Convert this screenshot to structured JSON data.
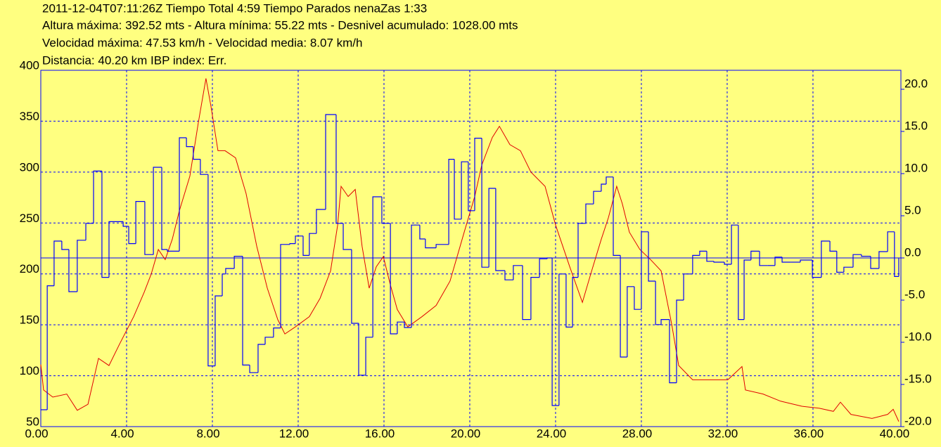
{
  "chart_data": {
    "type": "line",
    "title_lines": [
      "2011-12-04T07:11:26Z Tiempo Total  4:59  Tiempo Parados nenaZas 1:33",
      "Altura máxima: 392.52 mts - Altura mínima: 55.22 mts - Desnivel acumulado: 1028.00 mts",
      "Velocidad máxima: 47.53 km/h - Velocidad media: 8.07 km/h",
      "Distancia: 40.20 km   IBP index: Err."
    ],
    "xlim": [
      0,
      40.1
    ],
    "xticks": [
      {
        "value": 0,
        "label": "0.00"
      },
      {
        "value": 4,
        "label": "4.00"
      },
      {
        "value": 8,
        "label": "8.00"
      },
      {
        "value": 12,
        "label": "12.00"
      },
      {
        "value": 16,
        "label": "16.00"
      },
      {
        "value": 20,
        "label": "20.00"
      },
      {
        "value": 24,
        "label": "24.00"
      },
      {
        "value": 28,
        "label": "28.00"
      },
      {
        "value": 32,
        "label": "32.00"
      },
      {
        "value": 36,
        "label": "36.00"
      },
      {
        "value": 40,
        "label": "40.00"
      }
    ],
    "ylim": [
      50,
      400
    ],
    "yticks": [
      50,
      100,
      150,
      200,
      250,
      300,
      350,
      400
    ],
    "y2lim": [
      -20,
      22.25
    ],
    "y2ticks": [
      {
        "value": 20,
        "label": "20.0"
      },
      {
        "value": 15,
        "label": "15.0"
      },
      {
        "value": 10,
        "label": "10.0"
      },
      {
        "value": 5,
        "label": "5.0"
      },
      {
        "value": 0,
        "label": "0.0"
      },
      {
        "value": -5,
        "label": "-5.0"
      },
      {
        "value": -10,
        "label": "-10.0"
      },
      {
        "value": -15,
        "label": "-15.0"
      },
      {
        "value": -20,
        "label": "-20.0"
      }
    ],
    "grid": true,
    "series": [
      {
        "color": "#e00000",
        "drawstyle": "line",
        "x": [
          0,
          0.13,
          0.56,
          1.21,
          1.7,
          2.2,
          2.69,
          3.18,
          3.67,
          4.33,
          4.82,
          5.15,
          5.48,
          5.8,
          6.13,
          6.46,
          6.95,
          7.34,
          7.7,
          7.93,
          8.26,
          8.59,
          9.08,
          9.57,
          10.07,
          10.56,
          11.05,
          11.38,
          11.87,
          12.52,
          13.02,
          13.51,
          13.84,
          14.0,
          14.33,
          14.66,
          14.98,
          15.31,
          15.64,
          15.97,
          16.3,
          16.62,
          17.11,
          17.77,
          18.43,
          19.08,
          19.74,
          20.23,
          20.56,
          21.05,
          21.38,
          21.87,
          22.36,
          22.85,
          23.51,
          24.0,
          24.66,
          25.25,
          25.64,
          26.13,
          26.46,
          26.85,
          27.11,
          27.44,
          27.93,
          28.43,
          28.92,
          29.41,
          29.74,
          30.39,
          31.21,
          32.03,
          32.69,
          32.85,
          33.67,
          34.49,
          35.48,
          36.3,
          36.95,
          37.28,
          37.77,
          38.75,
          39.48,
          39.74,
          40.0
        ],
        "values": [
          111,
          86,
          79,
          82,
          66,
          72,
          117,
          110,
          131,
          158,
          182,
          200,
          224,
          214,
          234,
          262,
          296,
          348,
          392,
          365,
          321,
          321,
          314,
          279,
          227,
          186,
          155,
          141,
          148,
          158,
          176,
          203,
          248,
          286,
          276,
          283,
          227,
          186,
          207,
          217,
          189,
          165,
          148,
          158,
          169,
          193,
          241,
          276,
          307,
          334,
          345,
          327,
          321,
          300,
          286,
          248,
          207,
          172,
          200,
          234,
          255,
          286,
          269,
          241,
          224,
          214,
          203,
          151,
          110,
          96,
          96,
          96,
          109,
          86,
          82,
          75,
          70,
          68,
          65,
          74,
          62,
          58,
          62,
          67,
          55
        ]
      },
      {
        "color": "#0000ff",
        "axis": "y2",
        "drawstyle": "steps-post",
        "x": [
          0,
          0.3,
          0.62,
          0.98,
          1.31,
          1.7,
          2.1,
          2.46,
          2.85,
          3.18,
          3.84,
          4.1,
          4.43,
          4.85,
          5.25,
          5.64,
          5.9,
          6.46,
          6.79,
          7.11,
          7.44,
          7.8,
          8.13,
          8.46,
          8.62,
          9.02,
          9.41,
          9.74,
          10.13,
          10.46,
          10.85,
          11.18,
          11.61,
          11.87,
          12.23,
          12.52,
          12.85,
          13.28,
          13.77,
          14.1,
          14.49,
          14.82,
          15.15,
          15.48,
          15.9,
          16.3,
          16.62,
          16.95,
          17.28,
          17.67,
          17.93,
          18.43,
          19.02,
          19.28,
          19.61,
          19.93,
          20.23,
          20.56,
          20.89,
          21.21,
          21.64,
          22.03,
          22.46,
          22.85,
          23.25,
          23.61,
          23.84,
          24.16,
          24.49,
          24.79,
          25.05,
          25.41,
          25.77,
          26.13,
          26.36,
          26.69,
          27.02,
          27.34,
          27.67,
          28.0,
          28.33,
          28.66,
          28.92,
          29.31,
          29.64,
          29.97,
          30.39,
          30.72,
          31.05,
          31.38,
          31.87,
          32.2,
          32.52,
          32.79,
          33.11,
          33.51,
          33.9,
          34.23,
          34.56,
          34.98,
          35.41,
          35.97,
          36.39,
          36.79,
          37.11,
          37.44,
          37.87,
          38.26,
          38.69,
          39.08,
          39.48,
          39.8,
          40.0
        ],
        "values": [
          -18,
          -3.3,
          2.0,
          1.0,
          -4.0,
          2.1,
          4.1,
          10.3,
          -2.3,
          4.3,
          3.75,
          1.7,
          6.7,
          0.4,
          10.75,
          1.0,
          0.8,
          14.25,
          13.2,
          11.7,
          9.9,
          -12.8,
          -4.5,
          -1.9,
          -1.25,
          0.2,
          -12.7,
          -13.6,
          -10.25,
          -9.4,
          -8.3,
          1.6,
          1.7,
          2.6,
          0.3,
          2.9,
          5.75,
          17.0,
          4.1,
          1.0,
          -7.75,
          -13.9,
          -9.4,
          7.25,
          4.1,
          -9.0,
          -7.6,
          -8.25,
          3.9,
          2.25,
          1.2,
          1.6,
          11.7,
          4.6,
          11.4,
          5.6,
          14.2,
          -1.1,
          8.25,
          -1.5,
          -2.6,
          -0.9,
          -7.3,
          -2.3,
          -0.1,
          0,
          -17.5,
          -1.9,
          -8.2,
          -2.3,
          4.1,
          6.4,
          7.9,
          8.75,
          9.6,
          0.3,
          -11.75,
          -3.4,
          -6.1,
          3.1,
          -2.75,
          -7.9,
          -7.3,
          -14.8,
          -5.0,
          -1.9,
          0.3,
          0.8,
          -0.4,
          -0.5,
          -0.75,
          3.9,
          -7.3,
          -0.25,
          0.8,
          -0.9,
          -0.9,
          0.1,
          -0.5,
          -0.5,
          -0.25,
          -2.3,
          2.0,
          0.8,
          -1.7,
          -1.1,
          0.4,
          0.2,
          -1.25,
          0.75,
          3.1,
          -2.2,
          0
        ]
      }
    ]
  }
}
